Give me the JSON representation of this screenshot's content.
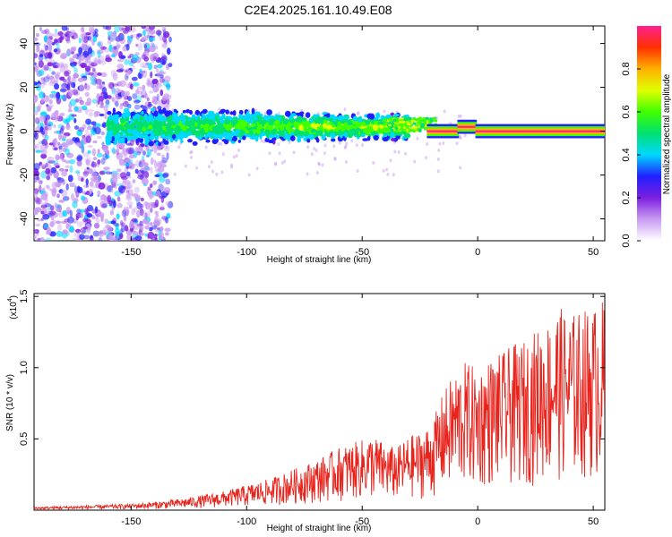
{
  "title": "C2E4.2025.161.10.49.E08",
  "chart_data": [
    {
      "type": "heatmap",
      "xlabel": "Height of straight line (km)",
      "ylabel": "Frequency (Hz)",
      "xlim": [
        -192,
        55
      ],
      "ylim": [
        -50,
        48
      ],
      "xticks": [
        -150,
        -100,
        -50,
        0,
        50
      ],
      "yticks": [
        -40,
        -20,
        0,
        20,
        40
      ],
      "colorbar": {
        "label": "Normalized spectral amplitude",
        "range": [
          0.0,
          1.0
        ],
        "ticks": [
          "0.0",
          "0.2",
          "0.4",
          "0.6",
          "0.8"
        ],
        "tick_values": [
          0.0,
          0.2,
          0.4,
          0.6,
          0.8
        ],
        "colors": [
          "#ffffff",
          "#c99bf2",
          "#7b1fe0",
          "#2020ff",
          "#00d8ff",
          "#00e070",
          "#40ff00",
          "#e0ff00",
          "#ffb000",
          "#ff3000",
          "#ff2090"
        ]
      },
      "bands": [
        {
          "x": [
            -192,
            -133
          ],
          "freq_spread": 48,
          "amplitude": 0.25,
          "note_visible": false
        },
        {
          "x": [
            -160,
            -30
          ],
          "freq_center": 2,
          "freq_spread": 8,
          "amplitude": 0.45
        },
        {
          "x": [
            -30,
            -20
          ],
          "freq_center": 3,
          "freq_spread": 4,
          "amplitude": 0.6
        },
        {
          "x": [
            -20,
            55
          ],
          "freq_center": 0,
          "freq_spread": 2,
          "amplitude": 0.9
        }
      ]
    },
    {
      "type": "line",
      "xlabel": "Height of straight line (km)",
      "ylabel": "SNR (10 * v/v)",
      "exponent_label": "(x10",
      "exponent_power": "4",
      "exponent_close": ")",
      "xlim": [
        -192,
        55
      ],
      "ylim": [
        0,
        1.52
      ],
      "xticks": [
        -150,
        -100,
        -50,
        0,
        50
      ],
      "yticks": [
        0.5,
        1.0,
        1.5
      ],
      "ytick_labels": [
        "0.5",
        "1.0",
        "1.5"
      ],
      "series": [
        {
          "color": "#e8231c",
          "envelope_x": [
            -192,
            -170,
            -150,
            -135,
            -125,
            -110,
            -100,
            -90,
            -80,
            -70,
            -60,
            -50,
            -45,
            -40,
            -35,
            -30,
            -25,
            -20,
            -15,
            -10,
            -5,
            0,
            5,
            10,
            15,
            20,
            25,
            30,
            35,
            40,
            45,
            50,
            55
          ],
          "envelope_y": [
            0.02,
            0.03,
            0.04,
            0.06,
            0.08,
            0.12,
            0.16,
            0.2,
            0.26,
            0.32,
            0.4,
            0.45,
            0.48,
            0.42,
            0.4,
            0.47,
            0.5,
            0.55,
            0.75,
            0.88,
            0.95,
            0.9,
            0.97,
            1.0,
            1.05,
            1.08,
            1.15,
            1.2,
            1.3,
            1.25,
            1.28,
            1.3,
            1.35
          ]
        }
      ]
    }
  ]
}
